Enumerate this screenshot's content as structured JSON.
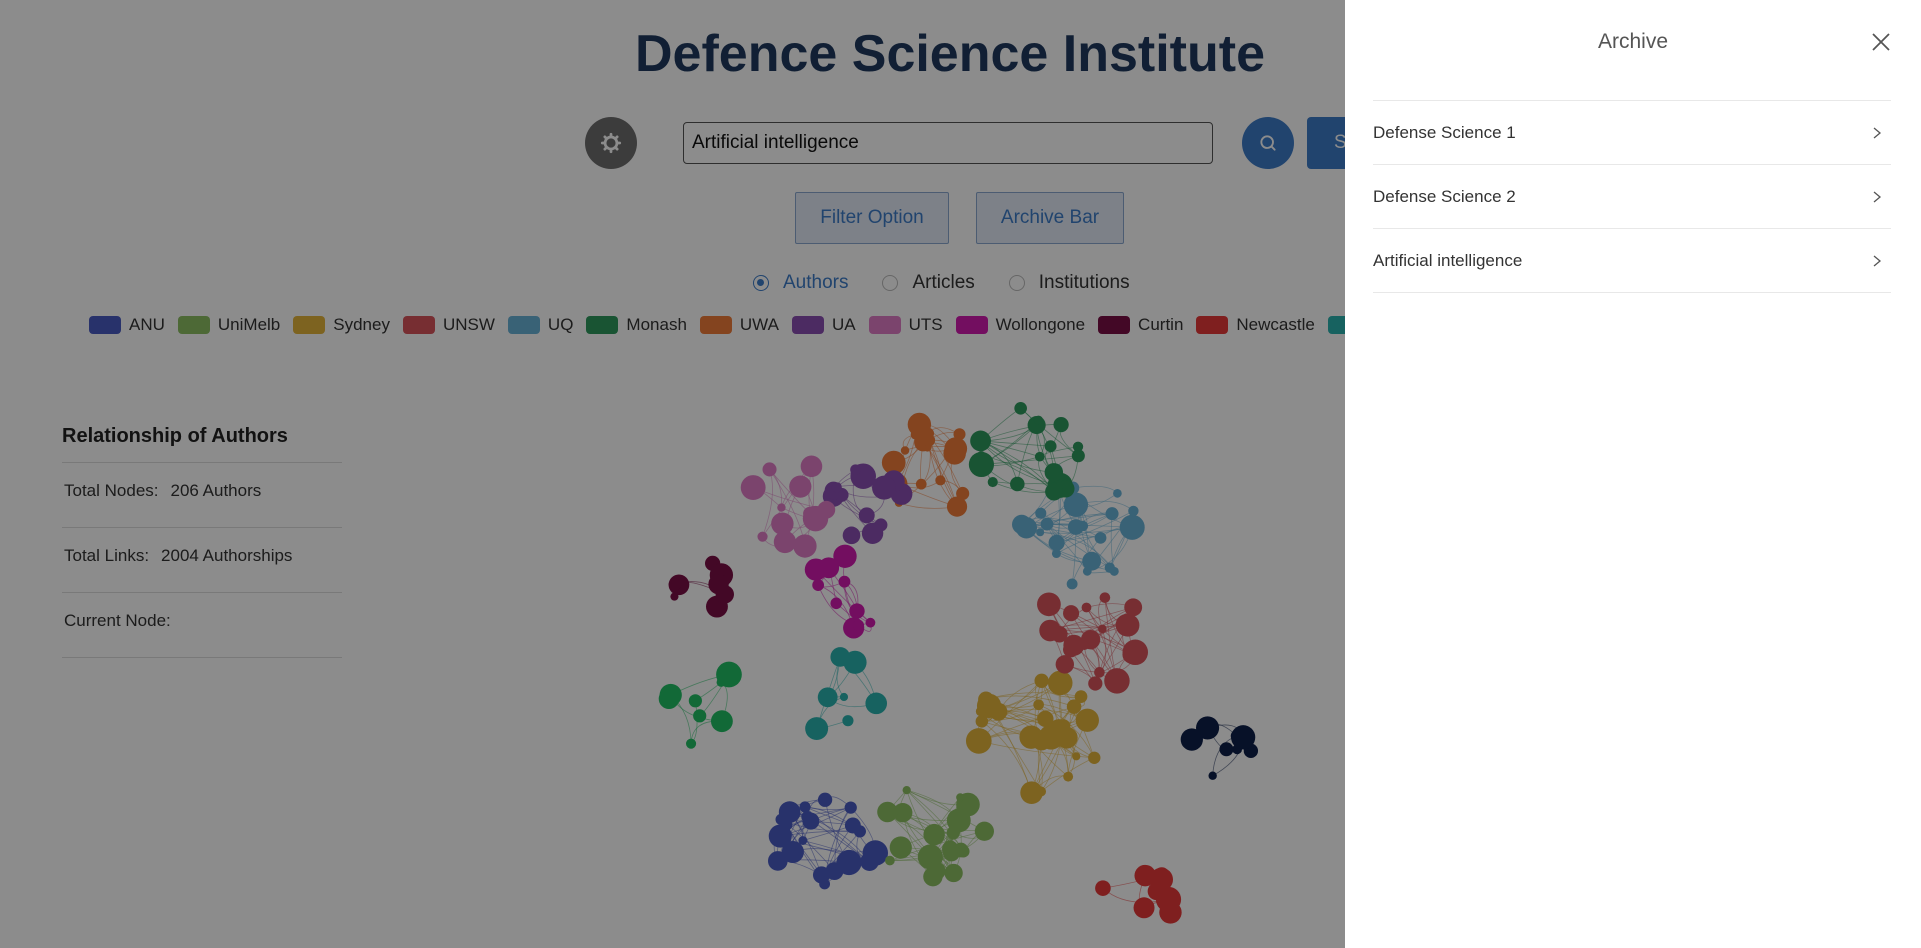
{
  "header": {
    "title": "Defence Science Institute"
  },
  "search": {
    "value": "Artificial intelligence",
    "submit_label": "S"
  },
  "buttons": {
    "filter_option": "Filter Option",
    "archive_bar": "Archive Bar"
  },
  "view_modes": [
    {
      "label": "Authors",
      "selected": true
    },
    {
      "label": "Articles",
      "selected": false
    },
    {
      "label": "Institutions",
      "selected": false
    }
  ],
  "legend": [
    {
      "label": "ANU",
      "color": "#4a5bc4"
    },
    {
      "label": "UniMelb",
      "color": "#8cc063"
    },
    {
      "label": "Sydney",
      "color": "#e3b53b"
    },
    {
      "label": "UNSW",
      "color": "#d9545c"
    },
    {
      "label": "UQ",
      "color": "#68b2d8"
    },
    {
      "label": "Monash",
      "color": "#2e9a5e"
    },
    {
      "label": "UWA",
      "color": "#f07c3a"
    },
    {
      "label": "UA",
      "color": "#8a4fb2"
    },
    {
      "label": "UTS",
      "color": "#e07dc6"
    },
    {
      "label": "Wollongone",
      "color": "#d11ab0"
    },
    {
      "label": "Curtin",
      "color": "#7a0f45"
    },
    {
      "label": "Newcastle",
      "color": "#e83a3a"
    },
    {
      "label": "",
      "color": "#2ab3b0"
    }
  ],
  "stats": {
    "title": "Relationship of Authors",
    "total_nodes_label": "Total Nodes:",
    "total_nodes_value": "206 Authors",
    "total_links_label": "Total Links:",
    "total_links_value": "2004 Authorships",
    "current_node_label": "Current Node:",
    "current_node_value": ""
  },
  "archive": {
    "title": "Archive",
    "items": [
      {
        "label": "Defense Science 1"
      },
      {
        "label": "Defense Science 2"
      },
      {
        "label": "Artificial intelligence"
      }
    ]
  }
}
